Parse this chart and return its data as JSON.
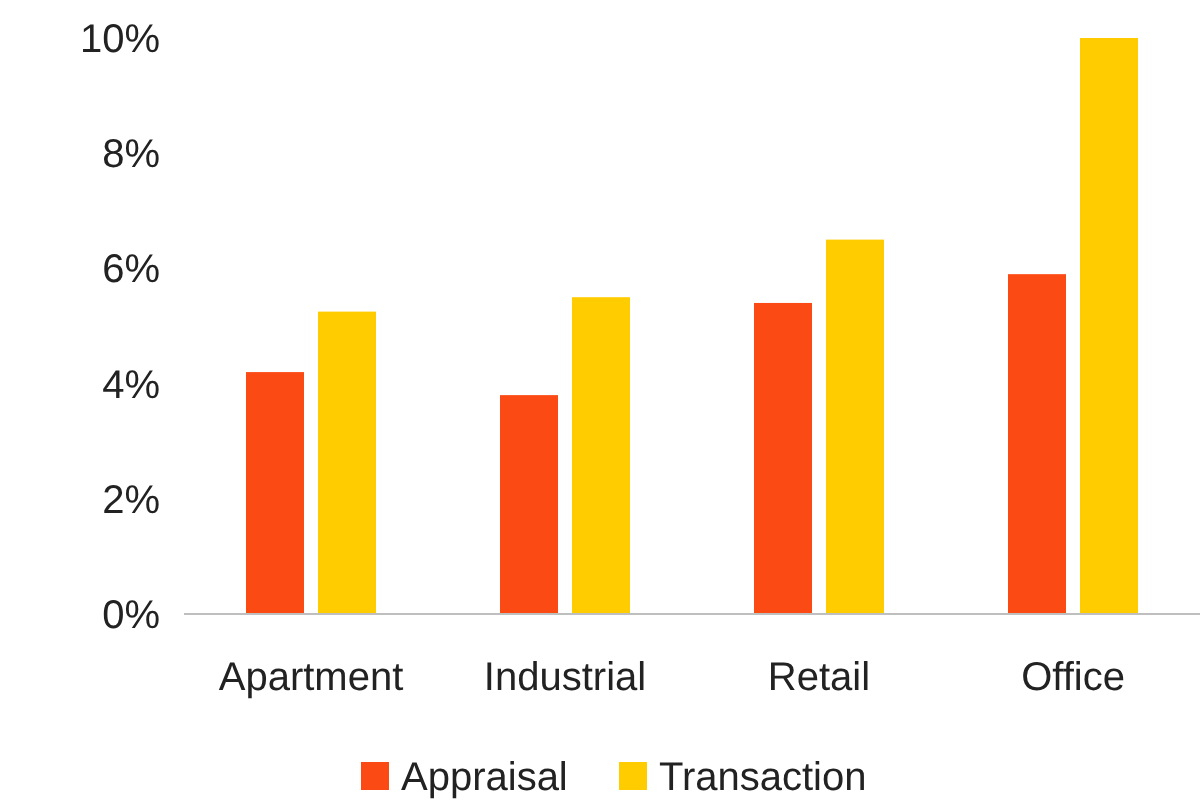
{
  "chart_data": {
    "type": "bar",
    "categories": [
      "Apartment",
      "Industrial",
      "Retail",
      "Office"
    ],
    "series": [
      {
        "name": "Appraisal",
        "color": "#fc4a14",
        "values": [
          4.2,
          3.8,
          5.4,
          5.9
        ]
      },
      {
        "name": "Transaction",
        "color": "#ffcc00",
        "values": [
          5.25,
          5.5,
          6.5,
          10
        ]
      }
    ],
    "ylim": [
      0,
      10
    ],
    "yticks": [
      {
        "value": 0,
        "label": "0%"
      },
      {
        "value": 2,
        "label": "2%"
      },
      {
        "value": 4,
        "label": "4%"
      },
      {
        "value": 6,
        "label": "6%"
      },
      {
        "value": 8,
        "label": "8%"
      },
      {
        "value": 10,
        "label": "10%"
      }
    ],
    "grid": false,
    "legend": "bottom"
  }
}
